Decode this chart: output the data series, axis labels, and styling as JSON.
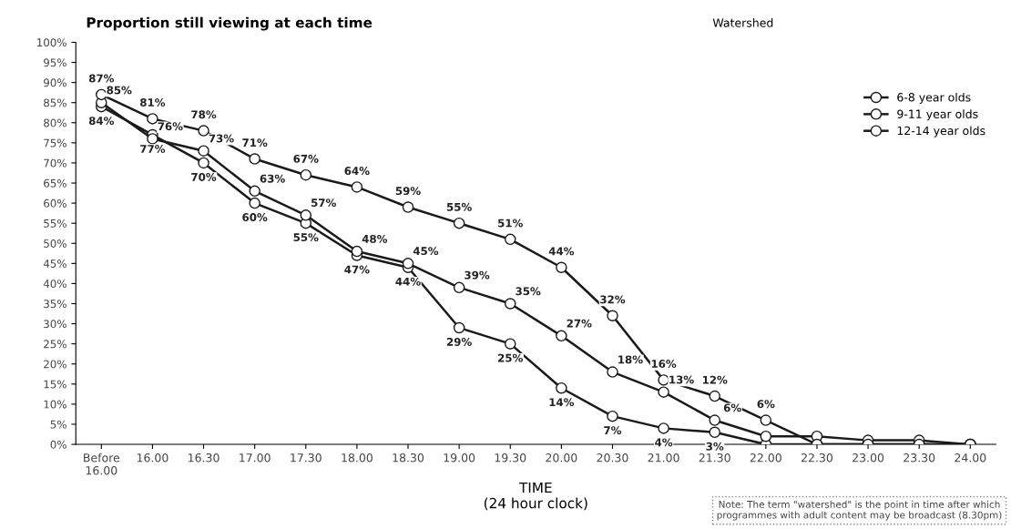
{
  "chart_data": {
    "type": "line",
    "title": "Proportion still viewing at each time",
    "xlabel": "TIME\n(24 hour clock)",
    "categories": [
      "Before\n16.00",
      "16.00",
      "16.30",
      "17.00",
      "17.30",
      "18.00",
      "18.30",
      "19.00",
      "19.30",
      "20.00",
      "20.30",
      "21.00",
      "21.30",
      "22.00",
      "22.30",
      "23.00",
      "23.30",
      "24.00"
    ],
    "series": [
      {
        "name": "6-8 year olds",
        "color": "#1a1a1a",
        "values": [
          84,
          77,
          70,
          60,
          55,
          47,
          44,
          29,
          25,
          14,
          7,
          4,
          3,
          0,
          0,
          0,
          0,
          0
        ],
        "value_labels": [
          "84%",
          "77%",
          "70%",
          "60%",
          "55%",
          "47%",
          "44%",
          "29%",
          "25%",
          "14%",
          "7%",
          "4%",
          "3%",
          null,
          null,
          null,
          null,
          null
        ]
      },
      {
        "name": "9-11 year olds",
        "color": "#1a1a1a",
        "values": [
          85,
          76,
          73,
          63,
          57,
          48,
          45,
          39,
          35,
          27,
          18,
          13,
          6,
          2,
          2,
          1,
          1,
          0
        ],
        "value_labels": [
          "85%",
          "76%",
          "73%",
          "63%",
          "57%",
          "48%",
          "45%",
          "39%",
          "35%",
          "27%",
          "18%",
          "13%",
          "6%",
          null,
          null,
          null,
          null,
          null
        ]
      },
      {
        "name": "12-14 year olds",
        "color": "#1a1a1a",
        "values": [
          87,
          81,
          78,
          71,
          67,
          64,
          59,
          55,
          51,
          44,
          32,
          16,
          12,
          6,
          0,
          0,
          0,
          0
        ],
        "value_labels": [
          "87%",
          "81%",
          "78%",
          "71%",
          "67%",
          "64%",
          "59%",
          "55%",
          "51%",
          "44%",
          "32%",
          "16%",
          "12%",
          "6%",
          null,
          null,
          null,
          null
        ]
      }
    ],
    "ylim": [
      0,
      100
    ],
    "yticks": [
      {
        "value": 0,
        "label": "0%"
      },
      {
        "value": 5,
        "label": "5%"
      },
      {
        "value": 10,
        "label": "10%"
      },
      {
        "value": 15,
        "label": "15%"
      },
      {
        "value": 20,
        "label": "20%"
      },
      {
        "value": 25,
        "label": "25%"
      },
      {
        "value": 30,
        "label": "30%"
      },
      {
        "value": 35,
        "label": "35%"
      },
      {
        "value": 40,
        "label": "40%"
      },
      {
        "value": 45,
        "label": "45%"
      },
      {
        "value": 50,
        "label": "50%"
      },
      {
        "value": 55,
        "label": "55%"
      },
      {
        "value": 60,
        "label": "60%"
      },
      {
        "value": 65,
        "label": "65%"
      },
      {
        "value": 70,
        "label": "70%"
      },
      {
        "value": 75,
        "label": "75%"
      },
      {
        "value": 80,
        "label": "80%"
      },
      {
        "value": 85,
        "label": "85%"
      },
      {
        "value": 90,
        "label": "90%"
      },
      {
        "value": 95,
        "label": "95%"
      },
      {
        "value": 100,
        "label": "100%"
      }
    ],
    "annotations": [
      "Watershed",
      "Note: The term \"watershed\" is the point in time after which\nprogrammes with adult content may be broadcast (8.30pm)"
    ],
    "marker": "circle",
    "line_style": "solid",
    "grid": false,
    "legend": "top right"
  }
}
